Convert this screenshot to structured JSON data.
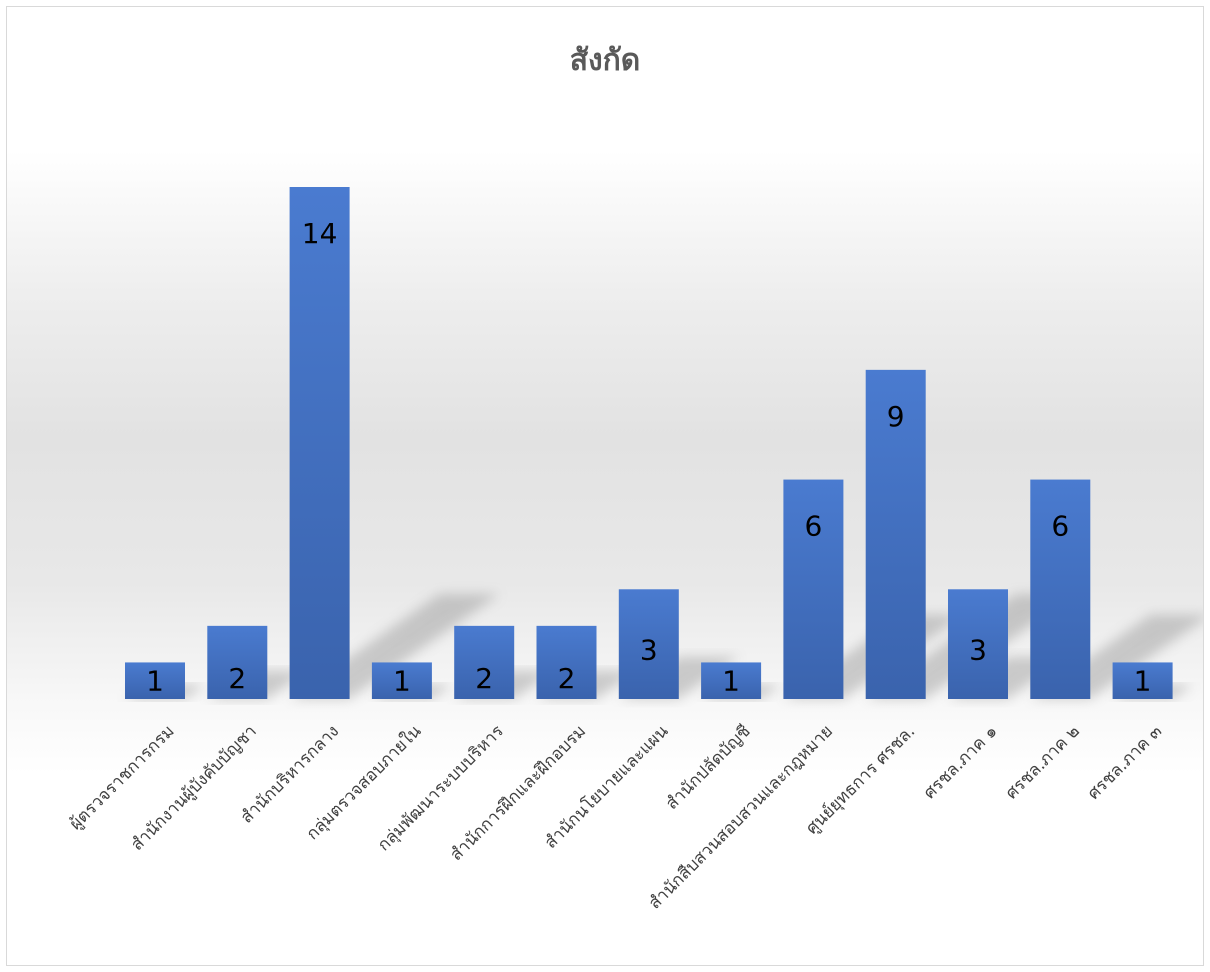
{
  "chart_data": {
    "type": "bar",
    "title": "สังกัด",
    "xlabel": "",
    "ylabel": "",
    "ylim": [
      0,
      14
    ],
    "grid": false,
    "legend": "none",
    "categories": [
      "ผู้ตรวจราชการกรม",
      "สำนักงานผู้บังคับบัญชา",
      "สำนักบริหารกลาง",
      "กลุ่มตรวจสอบภายใน",
      "กลุ่มพัฒนาระบบบริหาร",
      "สำนักการฝึกและฝึกอบรม",
      "สำนักนโยบายและแผน",
      "สำนักปลัดบัญชี",
      "สำนักสืบสวนสอบสวนและกฎหมาย",
      "ศูนย์ยุทธการ ศรชล.",
      "ศรชล.ภาค ๑",
      "ศรชล.ภาค ๒",
      "ศรชล.ภาค ๓"
    ],
    "values": [
      1,
      2,
      14,
      1,
      2,
      2,
      3,
      1,
      6,
      9,
      3,
      6,
      1
    ],
    "colors": {
      "bar": "#4472c4",
      "bar_top": "#4a7bd0",
      "bar_bottom": "#3a63ad",
      "title": "#595959",
      "tick": "#404040",
      "label": "#000000"
    }
  }
}
